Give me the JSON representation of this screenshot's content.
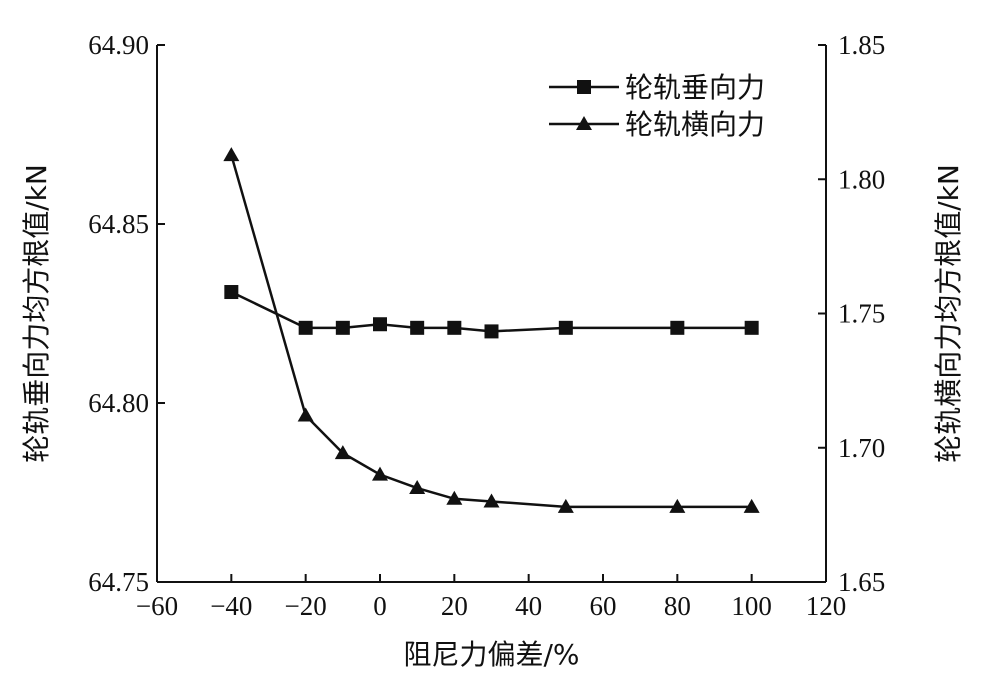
{
  "chart_data": {
    "type": "line",
    "title": "",
    "xlabel": "阻尼力偏差/%",
    "ylabel_left": "轮轨垂向力均方根值/kN",
    "ylabel_right": "轮轨横向力均方根值/kN",
    "xlim": [
      -60,
      120
    ],
    "xticks": [
      -60,
      -40,
      -20,
      0,
      20,
      40,
      60,
      80,
      100,
      120
    ],
    "xtick_labels": [
      "−60",
      "−40",
      "−20",
      "0",
      "20",
      "40",
      "60",
      "80",
      "100",
      "120"
    ],
    "ylim_left": [
      64.75,
      64.9
    ],
    "yticks_left": [
      64.75,
      64.8,
      64.85,
      64.9
    ],
    "ytick_labels_left": [
      "64.75",
      "64.80",
      "64.85",
      "64.90"
    ],
    "ylim_right": [
      1.65,
      1.85
    ],
    "yticks_right": [
      1.65,
      1.7,
      1.75,
      1.8,
      1.85
    ],
    "ytick_labels_right": [
      "1.65",
      "1.70",
      "1.75",
      "1.80",
      "1.85"
    ],
    "grid": false,
    "legend_position": "top-right",
    "x": [
      -40,
      -20,
      -10,
      0,
      10,
      20,
      30,
      50,
      80,
      100
    ],
    "series": [
      {
        "name": "轮轨垂向力",
        "axis": "left",
        "marker": "square",
        "values": [
          64.831,
          64.821,
          64.821,
          64.822,
          64.821,
          64.821,
          64.82,
          64.821,
          64.821,
          64.821
        ]
      },
      {
        "name": "轮轨横向力",
        "axis": "right",
        "marker": "triangle",
        "values": [
          1.809,
          1.712,
          1.698,
          1.69,
          1.685,
          1.681,
          1.68,
          1.678,
          1.678,
          1.678
        ]
      }
    ]
  }
}
